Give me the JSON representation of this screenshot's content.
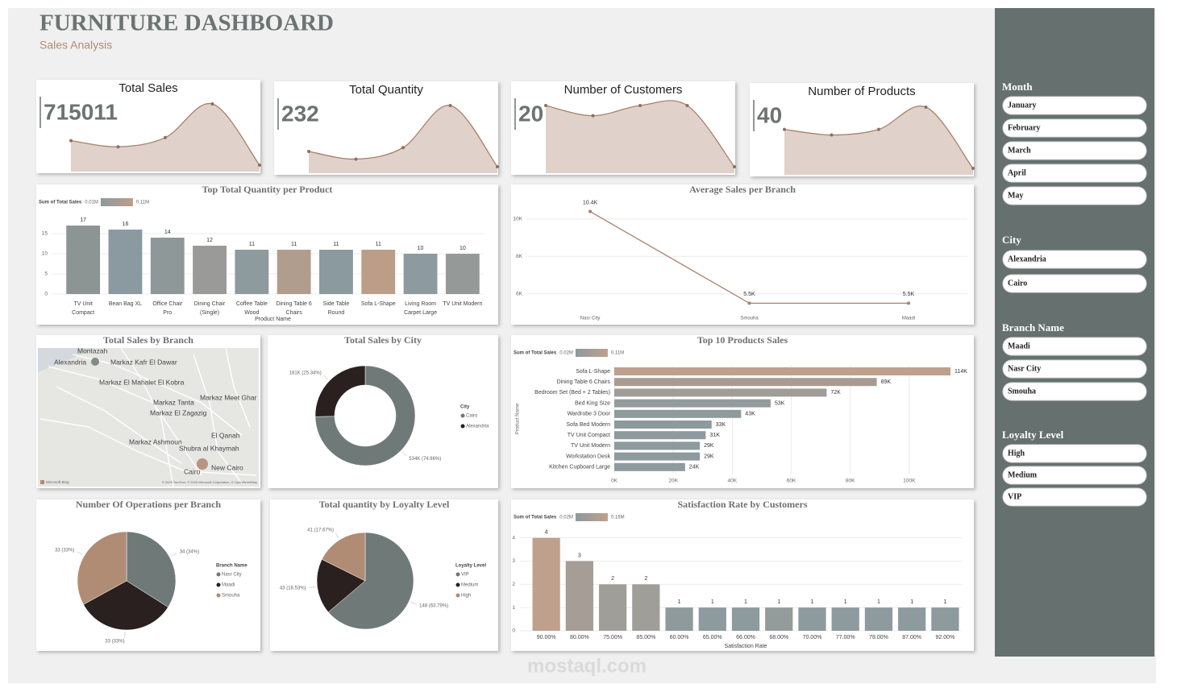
{
  "header": {
    "title": "FURNITURE DASHBOARD",
    "subtitle": "Sales Analysis"
  },
  "kpis": [
    {
      "title": "Total Sales",
      "value": 715011,
      "trend": [
        140000,
        130000,
        145000,
        200000,
        100000
      ]
    },
    {
      "title": "Total Quantity",
      "value": 232,
      "trend": [
        45,
        43,
        46,
        57,
        41
      ]
    },
    {
      "title": "Number of Customers",
      "value": 20,
      "trend": [
        12,
        11,
        12,
        12,
        6
      ]
    },
    {
      "title": "Number of Products",
      "value": 40,
      "trend": [
        33,
        32,
        33,
        37,
        26
      ]
    }
  ],
  "chart_data": [
    {
      "type": "bar",
      "title": "Top Total Quantity per Product",
      "x_label": "Product Name",
      "categories": [
        "TV Unit Compact",
        "Bean Bag XL",
        "Office Chair Pro",
        "Dining Chair (Single)",
        "Coffee Table Wood",
        "Dining Table 6 Chairs",
        "Side Table Round",
        "Sofa L-Shape",
        "Living Room Carpet Large",
        "TV Unit Modern"
      ],
      "values": [
        17,
        16,
        14,
        12,
        11,
        11,
        11,
        11,
        10,
        10
      ],
      "colors": [
        "#8d9594",
        "#8a9aa0",
        "#8f9899",
        "#9a9a98",
        "#8d9a9e",
        "#b19d8e",
        "#8b9a9e",
        "#bc9e88",
        "#8d9aa0",
        "#959a99"
      ],
      "ylim": [
        0,
        18
      ],
      "yticks": [
        0,
        5,
        10,
        15
      ],
      "grid": true,
      "color_scale": {
        "title": "Sum of Total Sales",
        "min": "0.01M",
        "max": "0.11M",
        "colors": [
          "#8d9a9e",
          "#bc9e88"
        ]
      }
    },
    {
      "type": "line",
      "title": "Average Sales per Branch",
      "categories": [
        "Nasr City",
        "Smouha",
        "Maadi"
      ],
      "values": [
        10400,
        5500,
        5500
      ],
      "value_labels": [
        "10.4K",
        "5.5K",
        "5.5K"
      ],
      "color": "#a8806a",
      "ylim": [
        5000,
        11500
      ],
      "yticks": [
        {
          "value": 6000,
          "label": "6K"
        },
        {
          "value": 8000,
          "label": "8K"
        },
        {
          "value": 10000,
          "label": "10K"
        }
      ],
      "grid": true
    },
    {
      "type": "map",
      "title": "Total Sales by Branch",
      "places": [
        "Montazah",
        "Alexandria",
        "Markaz Kafr El Dawar",
        "Markaz El Mahalet El Kobra",
        "Markaz Meet Ghar",
        "Markaz Tanta",
        "Markaz El Zagazig",
        "El Qanah",
        "Markaz Ashmoun",
        "Shubra al Khaymah",
        "Cairo",
        "New Cairo"
      ],
      "attribution": [
        "Microsoft Bing",
        "© 2025 TomTom, © 2025 Microsoft Corporation, © OpenStreetMap"
      ]
    },
    {
      "type": "donut",
      "title": "Total Sales by City",
      "legend_title": "City",
      "categories": [
        "Cairo",
        "Alexandria"
      ],
      "values": [
        534000,
        181000
      ],
      "value_labels": [
        "534K (74.66%)",
        "181K (25.34%)"
      ],
      "colors": [
        "#6f7a78",
        "#2b2020"
      ]
    },
    {
      "type": "bar",
      "orientation": "horizontal",
      "title": "Top 10 Products Sales",
      "y_label": "Product Name",
      "categories": [
        "Sofa L-Shape",
        "Dining Table 6 Chairs",
        "Bedroom Set (Bed + 2 Tables)",
        "Bed King Size",
        "Wardrobe 3 Door",
        "Sofa Bed Modern",
        "TV Unit Compact",
        "TV Unit Modern",
        "Workstation Desk",
        "Kitchen Cupboard Large"
      ],
      "values": [
        114000,
        89000,
        72000,
        53000,
        43000,
        33000,
        31000,
        29000,
        29000,
        24000
      ],
      "value_labels": [
        "114K",
        "89K",
        "72K",
        "53K",
        "43K",
        "33K",
        "31K",
        "29K",
        "29K",
        "24K"
      ],
      "colors": [
        "#bfa08d",
        "#a99b91",
        "#a09d99",
        "#939b9c",
        "#8f9a9d",
        "#8d9a9e",
        "#8d9a9e",
        "#8d9a9e",
        "#8d9a9e",
        "#8d9a9e"
      ],
      "xlim": [
        0,
        120000
      ],
      "xticks": [
        {
          "value": 0,
          "label": "0K"
        },
        {
          "value": 20000,
          "label": "20K"
        },
        {
          "value": 40000,
          "label": "40K"
        },
        {
          "value": 60000,
          "label": "60K"
        },
        {
          "value": 80000,
          "label": "80K"
        },
        {
          "value": 100000,
          "label": "100K"
        }
      ],
      "grid": true,
      "color_scale": {
        "title": "Sum of Total Sales",
        "min": "0.02M",
        "max": "0.11M",
        "colors": [
          "#8d9a9e",
          "#bfa08d"
        ]
      }
    },
    {
      "type": "pie",
      "title": "Number Of Operations per Branch",
      "legend_title": "Branch Name",
      "categories": [
        "Nasr City",
        "Maadi",
        "Smouha"
      ],
      "values": [
        34,
        33,
        33
      ],
      "value_labels": [
        "34 (34%)",
        "33 (33%)",
        "33 (33%)"
      ],
      "colors": [
        "#6f7a78",
        "#2b2020",
        "#b08c75"
      ]
    },
    {
      "type": "pie",
      "title": "Total quantity by Loyalty Level",
      "legend_title": "Loyalty Level",
      "categories": [
        "VIP",
        "Medium",
        "High"
      ],
      "values": [
        148,
        43,
        41
      ],
      "value_labels": [
        "148 (63.79%)",
        "43 (18.53%)",
        "41 (17.67%)"
      ],
      "colors": [
        "#6f7a78",
        "#2b2020",
        "#b08c75"
      ]
    },
    {
      "type": "bar",
      "title": "Satisfaction Rate by Customers",
      "x_label": "Satisfaction Rate",
      "categories": [
        "90.00%",
        "80.00%",
        "75.00%",
        "85.00%",
        "60.00%",
        "65.00%",
        "66.00%",
        "68.00%",
        "70.00%",
        "77.00%",
        "78.00%",
        "87.00%",
        "92.00%"
      ],
      "values": [
        4,
        3,
        2,
        2,
        1,
        1,
        1,
        1,
        1,
        1,
        1,
        1,
        1
      ],
      "colors": [
        "#bfa08d",
        "#a59d96",
        "#a09e99",
        "#a09e99",
        "#8f9a9d",
        "#8d9a9e",
        "#8d9a9e",
        "#949b9b",
        "#8d9a9e",
        "#8d9a9e",
        "#8d9a9e",
        "#8d9a9e",
        "#8d9a9e"
      ],
      "ylim": [
        0,
        4.3
      ],
      "yticks": [
        0,
        1,
        2,
        3,
        4
      ],
      "grid": true,
      "color_scale": {
        "title": "Sum of Total Sales",
        "min": "0.02M",
        "max": "0.16M",
        "colors": [
          "#8d9a9e",
          "#bfa08d"
        ]
      }
    }
  ],
  "slicers": [
    {
      "title": "Month",
      "items": [
        "January",
        "February",
        "March",
        "April",
        "May"
      ]
    },
    {
      "title": "City",
      "items": [
        "Alexandria",
        "Cairo"
      ]
    },
    {
      "title": "Branch Name",
      "items": [
        "Maadi",
        "Nasr City",
        "Smouha"
      ]
    },
    {
      "title": "Loyalty Level",
      "items": [
        "High",
        "Medium",
        "VIP"
      ]
    }
  ],
  "watermark": "mostaql.com"
}
